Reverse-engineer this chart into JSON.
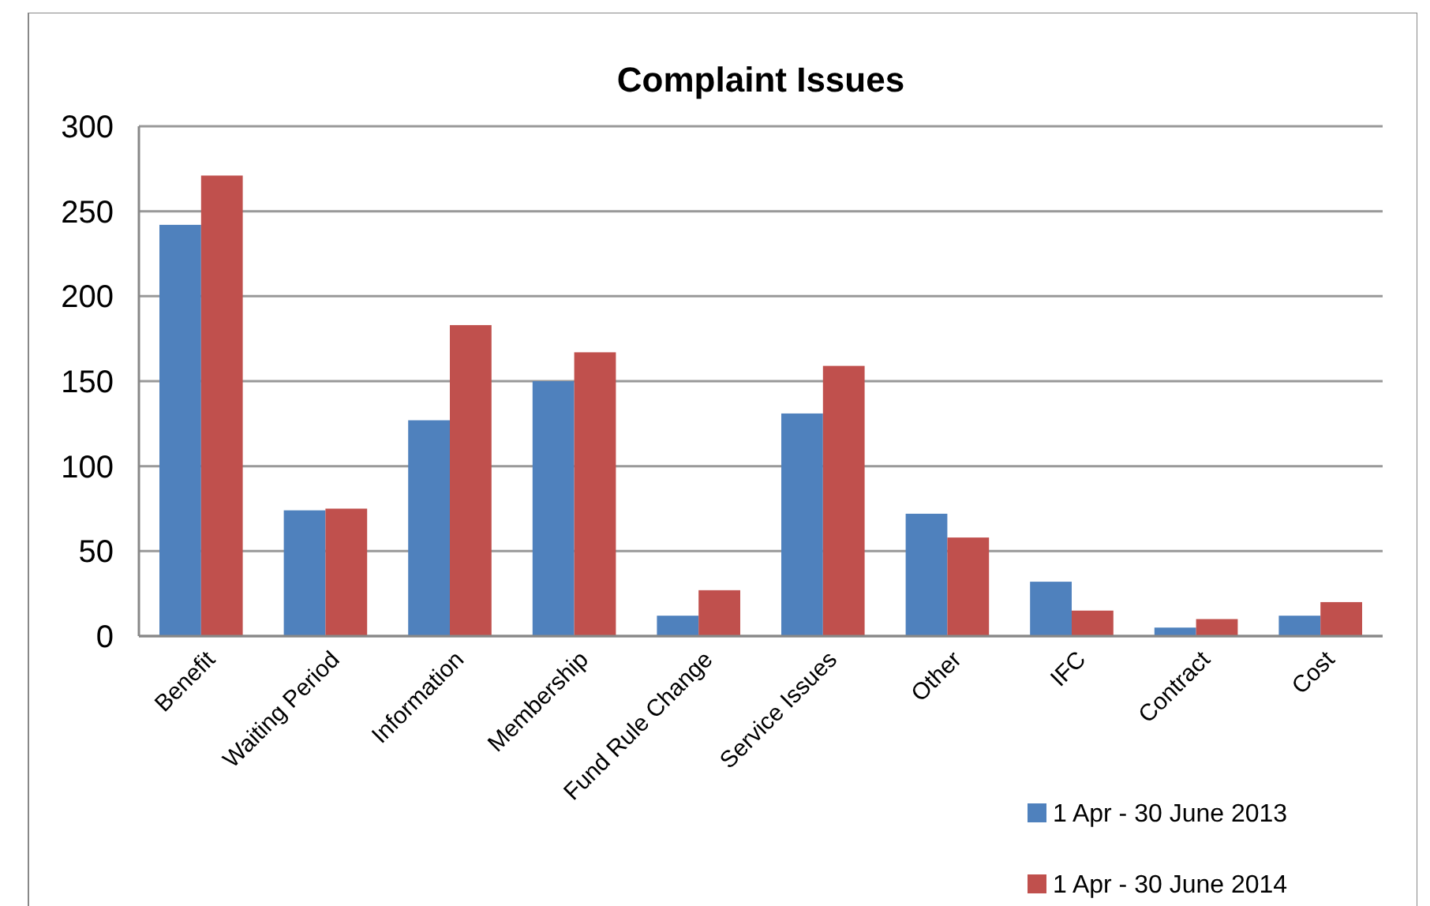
{
  "chart_data": {
    "type": "bar",
    "title": "Complaint Issues",
    "categories": [
      "Benefit",
      "Waiting Period",
      "Information",
      "Membership",
      "Fund Rule Change",
      "Service Issues",
      "Other",
      "IFC",
      "Contract",
      "Cost"
    ],
    "series": [
      {
        "name": "1 Apr - 30 June 2013",
        "color": "#4f81bd",
        "values": [
          242,
          74,
          127,
          150,
          12,
          131,
          72,
          32,
          5,
          12
        ]
      },
      {
        "name": "1 Apr - 30 June 2014",
        "color": "#c0504d",
        "values": [
          271,
          75,
          183,
          167,
          27,
          159,
          58,
          15,
          10,
          20
        ]
      }
    ],
    "ylim": [
      0,
      300
    ],
    "yticks": [
      0,
      50,
      100,
      150,
      200,
      250,
      300
    ],
    "grid": "y",
    "legend": "bottom right"
  }
}
